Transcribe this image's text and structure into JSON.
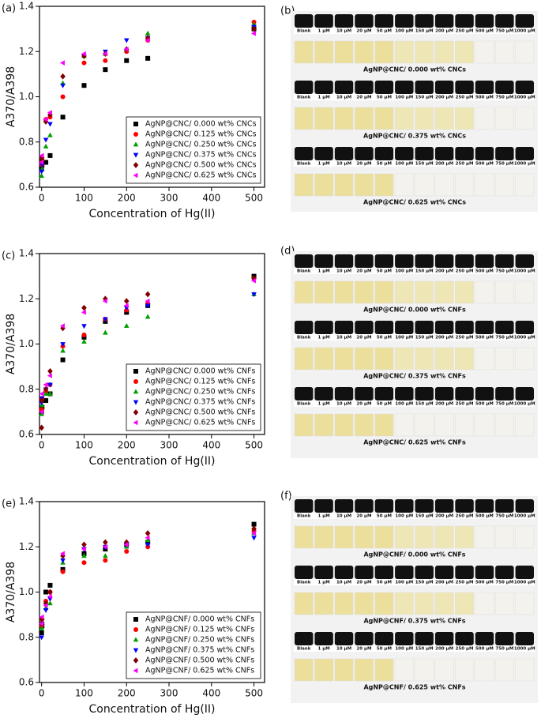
{
  "chart_data": [
    {
      "type": "scatter",
      "panel": "(a)",
      "x_label": "Concentration of Hg(II)",
      "y_label": "A370/A398",
      "x": [
        0,
        1,
        10,
        20,
        50,
        100,
        150,
        200,
        250,
        500
      ],
      "xlim": [
        -5,
        525
      ],
      "ylim": [
        0.6,
        1.4
      ],
      "xticks": [
        0,
        100,
        200,
        300,
        400,
        500
      ],
      "yticks": [
        0.6,
        0.8,
        {
          "value": 1,
          "label": "1.0"
        },
        1.2,
        1.4
      ],
      "legend": "lower right",
      "series": [
        {
          "name": "AgNP@CNC/ 0.000 wt% CNCs",
          "color": "#000000",
          "marker": "square",
          "values": [
            0.68,
            0.7,
            0.71,
            0.74,
            0.91,
            1.05,
            1.12,
            1.16,
            1.17,
            1.3
          ]
        },
        {
          "name": "AgNP@CNC/ 0.125 wt% CNCs",
          "color": "#ff0000",
          "marker": "circle",
          "values": [
            0.7,
            0.72,
            0.9,
            0.91,
            1.0,
            1.15,
            1.16,
            1.2,
            1.25,
            1.33
          ]
        },
        {
          "name": "AgNP@CNC/ 0.250 wt% CNCs",
          "color": "#00a000",
          "marker": "triangle-up",
          "values": [
            0.65,
            0.68,
            0.78,
            0.83,
            1.06,
            1.18,
            1.19,
            1.21,
            1.28,
            1.32
          ]
        },
        {
          "name": "AgNP@CNC/ 0.375 wt% CNCs",
          "color": "#0000ff",
          "marker": "triangle-down",
          "values": [
            0.67,
            0.7,
            0.81,
            0.88,
            1.05,
            1.18,
            1.2,
            1.25,
            1.26,
            1.31
          ]
        },
        {
          "name": "AgNP@CNC/ 0.500 wt% CNCs",
          "color": "#800000",
          "marker": "diamond",
          "values": [
            0.72,
            0.73,
            0.89,
            0.92,
            1.09,
            1.18,
            1.19,
            1.21,
            1.26,
            1.3
          ]
        },
        {
          "name": "AgNP@CNC/ 0.625 wt% CNCs",
          "color": "#ff00ff",
          "marker": "triangle-left",
          "values": [
            0.71,
            0.74,
            0.9,
            0.93,
            1.15,
            1.19,
            1.19,
            1.21,
            1.25,
            1.28
          ]
        }
      ]
    },
    {
      "type": "scatter",
      "panel": "(c)",
      "x_label": "Concentration of Hg(II)",
      "y_label": "A370/A398",
      "x": [
        0,
        1,
        10,
        20,
        50,
        100,
        150,
        200,
        250,
        500
      ],
      "xlim": [
        -5,
        525
      ],
      "ylim": [
        0.6,
        1.4
      ],
      "xticks": [
        0,
        100,
        200,
        300,
        400,
        500
      ],
      "yticks": [
        0.6,
        0.8,
        {
          "value": 1,
          "label": "1.0"
        },
        1.2,
        1.4
      ],
      "legend": "lower right",
      "series": [
        {
          "name": "AgNP@CNC/ 0.000 wt% CNFs",
          "color": "#000000",
          "marker": "square",
          "values": [
            0.7,
            0.72,
            0.75,
            0.78,
            0.93,
            1.03,
            1.1,
            1.14,
            1.17,
            1.3
          ]
        },
        {
          "name": "AgNP@CNC/ 0.125 wt% CNFs",
          "color": "#ff0000",
          "marker": "circle",
          "values": [
            0.71,
            0.76,
            0.79,
            0.82,
            0.99,
            1.04,
            1.11,
            1.15,
            1.18,
            1.29
          ]
        },
        {
          "name": "AgNP@CNC/ 0.250 wt% CNFs",
          "color": "#00a000",
          "marker": "triangle-up",
          "values": [
            0.69,
            0.73,
            0.78,
            0.78,
            0.97,
            1.01,
            1.05,
            1.08,
            1.12,
            1.22
          ]
        },
        {
          "name": "AgNP@CNC/ 0.375 wt% CNFs",
          "color": "#0000ff",
          "marker": "triangle-down",
          "values": [
            0.74,
            0.76,
            0.8,
            0.82,
            1.0,
            1.08,
            1.11,
            1.16,
            1.17,
            1.22
          ]
        },
        {
          "name": "AgNP@CNC/ 0.500 wt% CNFs",
          "color": "#800000",
          "marker": "diamond",
          "values": [
            0.63,
            0.75,
            0.8,
            0.88,
            1.07,
            1.16,
            1.2,
            1.19,
            1.22,
            1.29
          ]
        },
        {
          "name": "AgNP@CNC/ 0.625 wt% CNFs",
          "color": "#ff00ff",
          "marker": "triangle-left",
          "values": [
            0.7,
            0.78,
            0.82,
            0.86,
            1.08,
            1.14,
            1.19,
            1.17,
            1.19,
            1.28
          ]
        }
      ]
    },
    {
      "type": "scatter",
      "panel": "(e)",
      "x_label": "Concentration of Hg(II)",
      "y_label": "A370/A398",
      "x": [
        0,
        1,
        10,
        20,
        50,
        100,
        150,
        200,
        250,
        500
      ],
      "xlim": [
        -5,
        525
      ],
      "ylim": [
        0.6,
        1.4
      ],
      "xticks": [
        0,
        100,
        200,
        300,
        400,
        500
      ],
      "yticks": [
        0.6,
        0.8,
        {
          "value": 1,
          "label": "1.0"
        },
        1.2,
        1.4
      ],
      "legend": "lower right",
      "series": [
        {
          "name": "AgNP@CNF/ 0.000 wt% CNFs",
          "color": "#000000",
          "marker": "square",
          "values": [
            0.82,
            0.85,
            1.0,
            1.03,
            1.1,
            1.17,
            1.19,
            1.21,
            1.22,
            1.3
          ]
        },
        {
          "name": "AgNP@CNF/ 0.125 wt% CNFs",
          "color": "#ff0000",
          "marker": "circle",
          "values": [
            0.85,
            0.88,
            0.96,
            1.0,
            1.09,
            1.13,
            1.14,
            1.18,
            1.2,
            1.27
          ]
        },
        {
          "name": "AgNP@CNF/ 0.250 wt% CNFs",
          "color": "#00a000",
          "marker": "triangle-up",
          "values": [
            0.84,
            0.87,
            0.93,
            0.95,
            1.13,
            1.16,
            1.16,
            1.2,
            1.23,
            1.26
          ]
        },
        {
          "name": "AgNP@CNF/ 0.375 wt% CNFs",
          "color": "#0000ff",
          "marker": "triangle-down",
          "values": [
            0.8,
            0.86,
            0.92,
            0.97,
            1.14,
            1.19,
            1.2,
            1.21,
            1.21,
            1.24
          ]
        },
        {
          "name": "AgNP@CNF/ 0.500 wt% CNFs",
          "color": "#800000",
          "marker": "diamond",
          "values": [
            0.86,
            0.88,
            0.95,
            1.0,
            1.16,
            1.21,
            1.22,
            1.22,
            1.26,
            1.28
          ]
        },
        {
          "name": "AgNP@CNF/ 0.625 wt% CNFs",
          "color": "#ff00ff",
          "marker": "triangle-left",
          "values": [
            0.86,
            0.89,
            0.94,
            0.98,
            1.17,
            1.19,
            1.2,
            1.21,
            1.24,
            1.26
          ]
        }
      ]
    }
  ],
  "photos": [
    {
      "panel": "(b)",
      "vial_labels": [
        "Blank",
        "1 μM",
        "10 μM",
        "20 μM",
        "50 μM",
        "100 μM",
        "150 μM",
        "200 μM",
        "250 μM",
        "500 μM",
        "750 μM",
        "1000 μM"
      ],
      "captions": [
        "AgNP@CNC/ 0.000 wt% CNCs",
        "AgNP@CNC/ 0.375 wt% CNCs",
        "AgNP@CNC/ 0.625 wt% CNCs"
      ]
    },
    {
      "panel": "(d)",
      "vial_labels": [
        "Blank",
        "1 μM",
        "10 μM",
        "20 μM",
        "50 μM",
        "100 μM",
        "150 μM",
        "200 μM",
        "250 μM",
        "500 μM",
        "750 μM",
        "1000 μM"
      ],
      "captions": [
        "AgNP@CNC/ 0.000 wt% CNFs",
        "AgNP@CNC/ 0.375 wt% CNFs",
        "AgNP@CNC/ 0.625 wt% CNFs"
      ]
    },
    {
      "panel": "(f)",
      "vial_labels": [
        "Blank",
        "1 μM",
        "10 μM",
        "20 μM",
        "50 μM",
        "100 μM",
        "150 μM",
        "200 μM",
        "250 μM",
        "500 μM",
        "750 μM",
        "1000 μM"
      ],
      "captions": [
        "AgNP@CNF/ 0.000 wt% CNFs",
        "AgNP@CNF/ 0.375 wt% CNFs",
        "AgNP@CNF/ 0.625 wt% CNFs"
      ]
    }
  ]
}
